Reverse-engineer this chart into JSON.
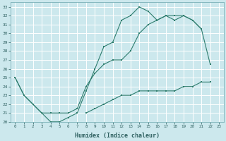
{
  "xlabel": "Humidex (Indice chaleur)",
  "bg_color": "#cce8ed",
  "grid_color": "#ffffff",
  "line_color": "#2e7d6e",
  "xlim": [
    -0.5,
    23.5
  ],
  "ylim": [
    20,
    33.5
  ],
  "yticks": [
    20,
    21,
    22,
    23,
    24,
    25,
    26,
    27,
    28,
    29,
    30,
    31,
    32,
    33
  ],
  "xticks": [
    0,
    1,
    2,
    3,
    4,
    5,
    6,
    7,
    8,
    9,
    10,
    11,
    12,
    13,
    14,
    15,
    16,
    17,
    18,
    19,
    20,
    21,
    22,
    23
  ],
  "series1_x": [
    0,
    1,
    2,
    3,
    4,
    5,
    6,
    7,
    8,
    9,
    10,
    11,
    12,
    13,
    14,
    15,
    16,
    17,
    18,
    19,
    20,
    21
  ],
  "series1_y": [
    25,
    23,
    22,
    21,
    20,
    20,
    20.5,
    21,
    23.5,
    26,
    28.5,
    29,
    31.5,
    32,
    33,
    32.5,
    31.5,
    32,
    32,
    32,
    31.5,
    30.5
  ],
  "series2_x": [
    0,
    1,
    2,
    3,
    4,
    5,
    6,
    7,
    8,
    9,
    10,
    11,
    12,
    13,
    14,
    15,
    16,
    17,
    18,
    19,
    20,
    21,
    22
  ],
  "series2_y": [
    25,
    23,
    22,
    21,
    21,
    21,
    21,
    21.5,
    24,
    25.5,
    26.5,
    27,
    27,
    28,
    30,
    31,
    31.5,
    32,
    31.5,
    32,
    31.5,
    30.5,
    26.5
  ],
  "series3_x": [
    8,
    9,
    10,
    11,
    12,
    13,
    14,
    15,
    16,
    17,
    18,
    19,
    20,
    21,
    22
  ],
  "series3_y": [
    21,
    21.5,
    22,
    22.5,
    23,
    23,
    23.5,
    23.5,
    23.5,
    23.5,
    23.5,
    24,
    24,
    24.5,
    24.5
  ]
}
